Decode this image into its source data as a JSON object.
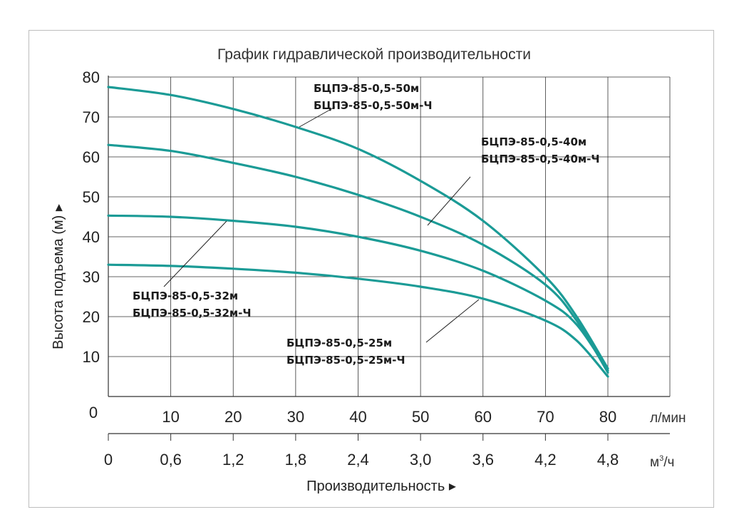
{
  "chart_data": {
    "type": "line",
    "title": "График гидравлической производительности",
    "ylabel": "Высота подъема (м) ▸",
    "xlabel": "Производительность ▸",
    "x_unit": "л/мин",
    "x2_unit_base": "м",
    "x2_unit_sup": "3",
    "x2_unit_tail": "/ч",
    "ylim": [
      0,
      80
    ],
    "xlim": [
      0,
      80
    ],
    "grid": true,
    "y_ticks": [
      "10",
      "20",
      "30",
      "40",
      "50",
      "60",
      "70",
      "80"
    ],
    "y_origin_label": "0",
    "x_ticks": [
      "10",
      "20",
      "30",
      "40",
      "50",
      "60",
      "70",
      "80"
    ],
    "x2_ticks": [
      "0",
      "0,6",
      "1,2",
      "1,8",
      "2,4",
      "3,0",
      "3,6",
      "4,2",
      "4,8"
    ],
    "series": [
      {
        "name": "БЦПЭ-85-0,5-50м / БЦПЭ-85-0,5-50м-Ч",
        "label_lines": [
          "БЦПЭ-85-0,5-50м",
          "БЦПЭ-85-0,5-50м-Ч"
        ],
        "x": [
          0,
          10,
          20,
          30,
          40,
          50,
          60,
          70,
          75,
          80
        ],
        "y": [
          77.5,
          75.5,
          72,
          67.5,
          62,
          54,
          44,
          30,
          20,
          7
        ]
      },
      {
        "name": "БЦПЭ-85-0,5-40м / БЦПЭ-85-0,5-40м-Ч",
        "label_lines": [
          "БЦПЭ-85-0,5-40м",
          "БЦПЭ-85-0,5-40м-Ч"
        ],
        "x": [
          0,
          10,
          20,
          30,
          40,
          50,
          60,
          70,
          75,
          80
        ],
        "y": [
          63,
          61.5,
          58.5,
          55,
          50.5,
          45,
          38,
          28,
          19,
          6
        ]
      },
      {
        "name": "БЦПЭ-85-0,5-32м / БЦПЭ-85-0,5-32м-Ч",
        "label_lines": [
          "БЦПЭ-85-0,5-32м",
          "БЦПЭ-85-0,5-32м-Ч"
        ],
        "x": [
          0,
          10,
          20,
          30,
          40,
          50,
          60,
          70,
          75,
          80
        ],
        "y": [
          45.3,
          45,
          44,
          42.5,
          40,
          36.5,
          31.5,
          24,
          18,
          6.5
        ]
      },
      {
        "name": "БЦПЭ-85-0,5-25м / БЦПЭ-85-0,5-25м-Ч",
        "label_lines": [
          "БЦПЭ-85-0,5-25м",
          "БЦПЭ-85-0,5-25м-Ч"
        ],
        "x": [
          0,
          10,
          20,
          30,
          40,
          50,
          60,
          70,
          75,
          80
        ],
        "y": [
          33,
          32.7,
          32,
          31,
          29.5,
          27.5,
          24.5,
          19,
          14,
          5
        ]
      }
    ],
    "colors": {
      "curve": "#1b9b96",
      "grid": "#333333",
      "axis": "#333333"
    }
  }
}
